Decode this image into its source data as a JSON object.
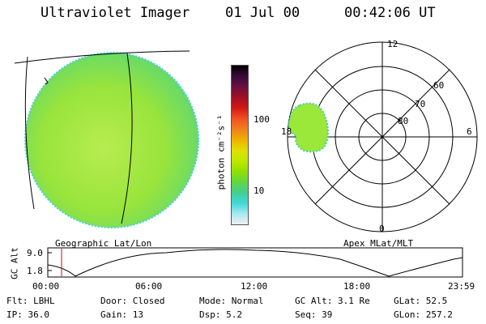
{
  "header": {
    "title": "Ultraviolet Imager",
    "date": "01 Jul 00",
    "time": "00:42:06 UT"
  },
  "colorbar": {
    "unit_label": "photon cm⁻²s⁻¹",
    "tick_labels": [
      "100",
      "10"
    ],
    "colors": [
      "#000000",
      "#3a0a3a",
      "#6a1040",
      "#a01020",
      "#d01818",
      "#f05020",
      "#f08020",
      "#f0b000",
      "#e0e000",
      "#c0e800",
      "#90e000",
      "#60d840",
      "#40d090",
      "#40d8d8",
      "#a8e8f0",
      "#f0f0f0"
    ]
  },
  "geo_panel": {
    "label": "Geographic Lat/Lon",
    "fill_color": "#9be83a"
  },
  "polar_panel": {
    "label": "Apex MLat/MLT",
    "lat_labels": [
      "60",
      "70",
      "80"
    ],
    "mlt_labels": [
      "12",
      "18",
      "6",
      "0"
    ]
  },
  "altitude_plot": {
    "ylabel": "GC Alt",
    "ytick_labels": [
      "9.0",
      "1.8"
    ],
    "xtick_labels": [
      "00:00",
      "06:00",
      "12:00",
      "18:00",
      "23:59"
    ],
    "marker_color": "#c01010"
  },
  "info": {
    "col1": [
      "Flt: LBHL",
      "IP: 36.0"
    ],
    "col2": [
      "Door: Closed",
      "Gain: 13"
    ],
    "col3": [
      "Mode: Normal",
      "Dsp:    5.2"
    ],
    "col4": [
      "GC Alt: 3.1 Re",
      "Seq: 39"
    ],
    "col5": [
      "GLat:  52.5",
      "GLon: 257.2"
    ]
  }
}
